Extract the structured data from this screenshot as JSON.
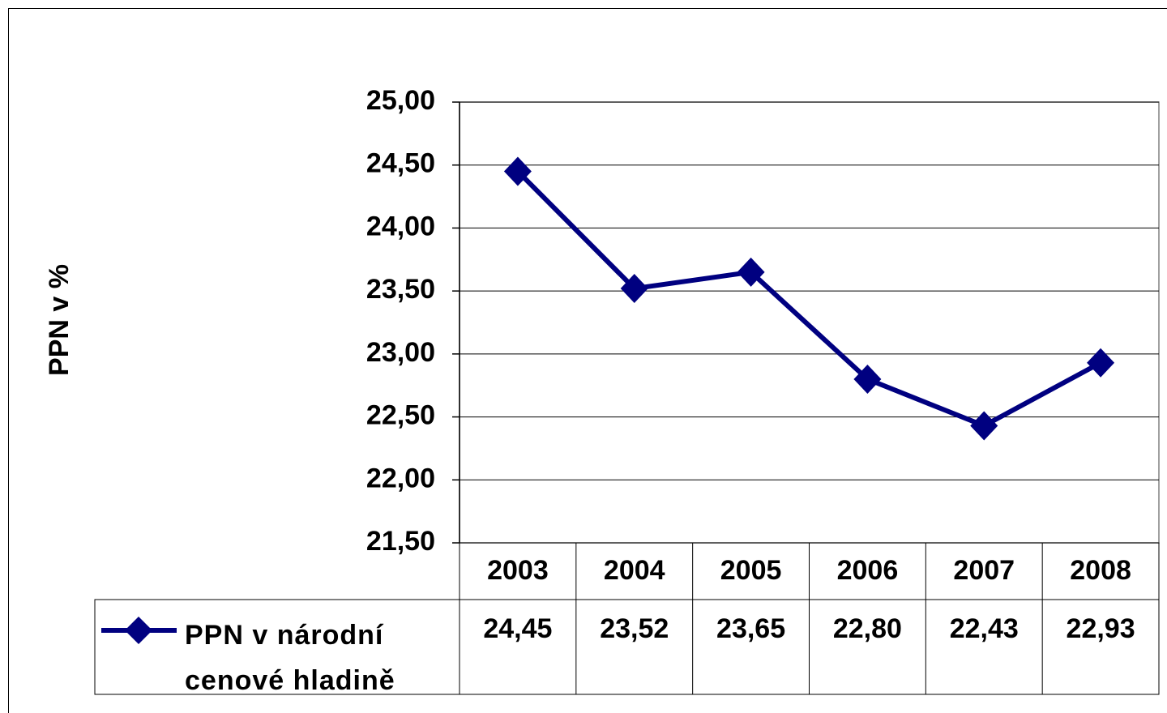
{
  "chart_data": {
    "type": "line",
    "y_label": "PPN v %",
    "categories": [
      "2003",
      "2004",
      "2005",
      "2006",
      "2007",
      "2008"
    ],
    "series": [
      {
        "name": "PPN v národní cenové hladině",
        "color": "#000080",
        "values": [
          24.45,
          23.52,
          23.65,
          22.8,
          22.43,
          22.93
        ],
        "value_labels": [
          "24,45",
          "23,52",
          "23,65",
          "22,80",
          "22,43",
          "22,93"
        ]
      }
    ],
    "ylim": [
      21.5,
      25
    ],
    "yticks": [
      {
        "value": 21.5,
        "label": "21,50"
      },
      {
        "value": 22,
        "label": "22,00"
      },
      {
        "value": 22.5,
        "label": "22,50"
      },
      {
        "value": 23,
        "label": "23,00"
      },
      {
        "value": 23.5,
        "label": "23,50"
      },
      {
        "value": 24,
        "label": "24,00"
      },
      {
        "value": 24.5,
        "label": "24,50"
      },
      {
        "value": 25,
        "label": "25,00"
      }
    ],
    "grid": true,
    "data_table": true
  }
}
